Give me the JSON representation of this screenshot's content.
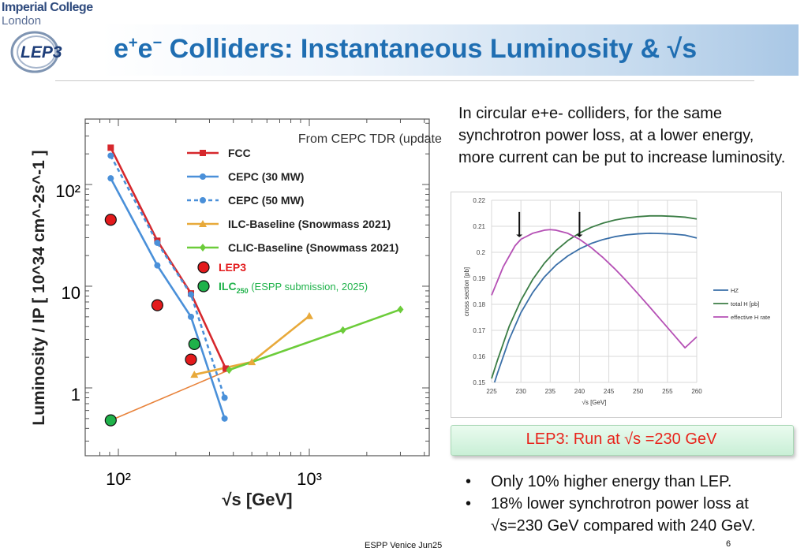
{
  "header": {
    "institution_line1": "Imperial College",
    "institution_line2": "London",
    "logo_text": "LEP3",
    "title_base": "e",
    "title_sup1": "+",
    "title_mid": "e",
    "title_sup2": "−",
    "title_rest": " Colliders: Instantaneous Luminosity & √s"
  },
  "intro_text": "In circular e+e- colliders, for the same synchrotron power loss, at a lower energy, more current can be put to increase luminosity.",
  "callout": "LEP3: Run at √s =230 GeV",
  "bullets": [
    "Only 10% higher energy than LEP.",
    "18% lower synchrotron power loss at √s=230 GeV compared with 240 GeV."
  ],
  "footer": "ESPP Venice Jun25",
  "page_number": "6",
  "chart_data": [
    {
      "type": "line",
      "xlabel": "√s [GeV]",
      "ylabel": "Luminosity / IP [ 10^34 cm^-2s^-1 ]",
      "xscale": "log",
      "yscale": "log",
      "xlim": [
        80,
        4000
      ],
      "ylim": [
        0.3,
        400
      ],
      "x_tick_labels": [
        "10²",
        "10³"
      ],
      "y_tick_labels": [
        "1",
        "10",
        "10²"
      ],
      "annotation": "From CEPC TDR (updated)",
      "legend_position": "top-right",
      "series": [
        {
          "name": "FCC",
          "color": "#d6272c",
          "marker": "square",
          "dash": false,
          "points": [
            [
              91.2,
              230
            ],
            [
              160,
              28
            ],
            [
              240,
              8.5
            ],
            [
              365,
              1.55
            ]
          ]
        },
        {
          "name": "CEPC (30 MW)",
          "color": "#4a90d9",
          "marker": "circle",
          "dash": false,
          "points": [
            [
              91.2,
              115
            ],
            [
              160,
              16
            ],
            [
              240,
              5
            ],
            [
              360,
              0.5
            ]
          ]
        },
        {
          "name": "CEPC (50 MW)",
          "color": "#4a90d9",
          "marker": "circle",
          "dash": true,
          "points": [
            [
              91.2,
              192
            ],
            [
              160,
              26.7
            ],
            [
              240,
              8.3
            ],
            [
              360,
              0.8
            ]
          ]
        },
        {
          "name": "ILC-Baseline (Snowmass 2021)",
          "color": "#e8a93a",
          "marker": "triangle",
          "dash": false,
          "points": [
            [
              250,
              1.35
            ],
            [
              500,
              1.8
            ],
            [
              1000,
              5.1
            ]
          ]
        },
        {
          "name": "CLIC-Baseline (Snowmass 2021)",
          "color": "#6ccc3a",
          "marker": "diamond",
          "dash": false,
          "points": [
            [
              380,
              1.5
            ],
            [
              1500,
              3.7
            ],
            [
              3000,
              5.9
            ]
          ]
        }
      ],
      "extra_series": [
        {
          "name": "LEP3",
          "color": "#e31a1c",
          "marker": "big-circle",
          "points": [
            [
              91.2,
              45
            ],
            [
              160,
              6.5
            ],
            [
              240,
              1.9
            ]
          ]
        },
        {
          "name": "ILC250",
          "label_suffix": "(ESPP submission, 2025)",
          "color": "#1fb24a",
          "marker": "big-circle",
          "points": [
            [
              91.2,
              0.48
            ],
            [
              250,
              2.7
            ]
          ]
        },
        {
          "name": "ILC link",
          "color": "#e8823a",
          "marker": "none",
          "points": [
            [
              91.2,
              0.48
            ],
            [
              380,
              1.5
            ]
          ]
        }
      ]
    },
    {
      "type": "line",
      "xlabel": "√s [GeV]",
      "ylabel": "cross section [pb]",
      "xlim": [
        225,
        260
      ],
      "ylim": [
        0.15,
        0.22
      ],
      "x_ticks": [
        225,
        230,
        235,
        240,
        245,
        250,
        255,
        260
      ],
      "y_ticks": [
        0.15,
        0.16,
        0.17,
        0.18,
        0.19,
        0.2,
        0.21,
        0.22
      ],
      "legend_position": "right",
      "arrows_at_x": [
        230,
        240
      ],
      "series": [
        {
          "name": "HZ",
          "color": "#3a6fa8",
          "x": [
            225.5,
            226,
            228,
            230,
            232,
            234,
            236,
            238,
            240,
            242,
            244,
            246,
            248,
            250,
            252,
            254,
            256,
            258,
            260
          ],
          "y": [
            0.15,
            0.1535,
            0.1665,
            0.1768,
            0.1845,
            0.1905,
            0.1951,
            0.1986,
            0.2013,
            0.2034,
            0.2049,
            0.206,
            0.2067,
            0.2071,
            0.2073,
            0.2072,
            0.207,
            0.2066,
            0.2055
          ]
        },
        {
          "name": "total H [pb]",
          "color": "#3b7d45",
          "x": [
            225,
            226,
            228,
            230,
            232,
            234,
            236,
            238,
            240,
            242,
            244,
            246,
            248,
            250,
            252,
            254,
            256,
            258,
            260
          ],
          "y": [
            0.1515,
            0.1585,
            0.1715,
            0.1815,
            0.1895,
            0.1958,
            0.2007,
            0.2045,
            0.2074,
            0.2096,
            0.2112,
            0.2124,
            0.2132,
            0.2137,
            0.214,
            0.214,
            0.2138,
            0.2135,
            0.2128
          ]
        },
        {
          "name": "effective H rate",
          "color": "#b550b5",
          "x": [
            225,
            227,
            229,
            230,
            232,
            234,
            235,
            236,
            238,
            240,
            242,
            244,
            246,
            248,
            250,
            252,
            254,
            256,
            258,
            260
          ],
          "y": [
            0.1835,
            0.1945,
            0.2025,
            0.205,
            0.2073,
            0.2085,
            0.2087,
            0.2085,
            0.2073,
            0.205,
            0.2018,
            0.198,
            0.1937,
            0.189,
            0.184,
            0.1789,
            0.1737,
            0.1685,
            0.1633,
            0.1675
          ]
        }
      ]
    }
  ]
}
